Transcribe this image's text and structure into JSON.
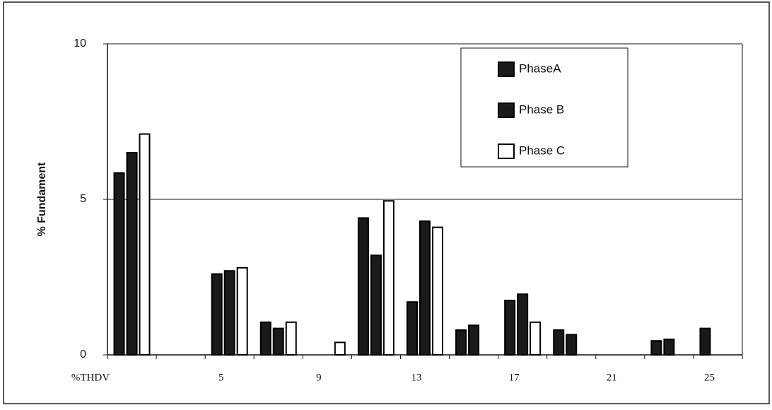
{
  "chart_data": {
    "type": "bar",
    "y_label": "% Fundament",
    "categories": [
      "%THDV",
      null,
      "5",
      null,
      "9",
      null,
      "13",
      null,
      "17",
      null,
      "21",
      null,
      "25"
    ],
    "series": [
      {
        "name": "PhaseA",
        "color": "#1a1a1a",
        "values": [
          5.85,
          0,
          2.6,
          1.05,
          0,
          4.4,
          1.7,
          0.8,
          1.75,
          0.8,
          0,
          0.45,
          0.85
        ]
      },
      {
        "name": "Phase B",
        "color": "#1a1a1a",
        "values": [
          6.5,
          0,
          2.7,
          0.85,
          0,
          3.2,
          4.3,
          0.95,
          1.95,
          0.65,
          0,
          0.5,
          0
        ]
      },
      {
        "name": "Phase C",
        "color": "#ffffff",
        "values": [
          7.1,
          0,
          2.8,
          1.05,
          0.4,
          4.95,
          4.1,
          0,
          1.05,
          0,
          0,
          0,
          0
        ]
      }
    ],
    "ylim": [
      0,
      10
    ],
    "yticks": [
      0,
      5,
      10
    ],
    "grid": true,
    "legend": "top-right"
  }
}
